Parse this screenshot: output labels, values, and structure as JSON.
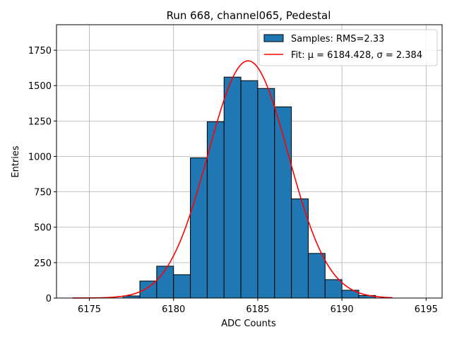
{
  "chart_data": {
    "type": "bar",
    "title": "Run 668, channel065, Pedestal",
    "xlabel": "ADC Counts",
    "ylabel": "Entries",
    "xlim": [
      6173.05,
      6195.95
    ],
    "ylim": [
      0,
      1930
    ],
    "xticks": [
      6175,
      6180,
      6185,
      6190,
      6195
    ],
    "yticks": [
      0,
      250,
      500,
      750,
      1000,
      1250,
      1500,
      1750
    ],
    "grid": true,
    "legend_position": "top-right",
    "histogram": {
      "name": "Samples: RMS=2.33",
      "color": "#1f77b4",
      "edgecolor": "#000000",
      "bin_edges": [
        6177,
        6178,
        6179,
        6180,
        6181,
        6182,
        6183,
        6184,
        6185,
        6186,
        6187,
        6188,
        6189,
        6190,
        6191,
        6192
      ],
      "counts": [
        15,
        120,
        225,
        165,
        990,
        1245,
        1560,
        1535,
        1480,
        1350,
        700,
        315,
        130,
        55,
        18
      ]
    },
    "fit": {
      "name": "Fit: μ = 6184.428, σ = 2.384",
      "color": "#ff0000",
      "function": "gaussian",
      "mu": 6184.428,
      "sigma": 2.384,
      "amplitude": 1675,
      "x_range": [
        6174,
        6193
      ]
    }
  }
}
